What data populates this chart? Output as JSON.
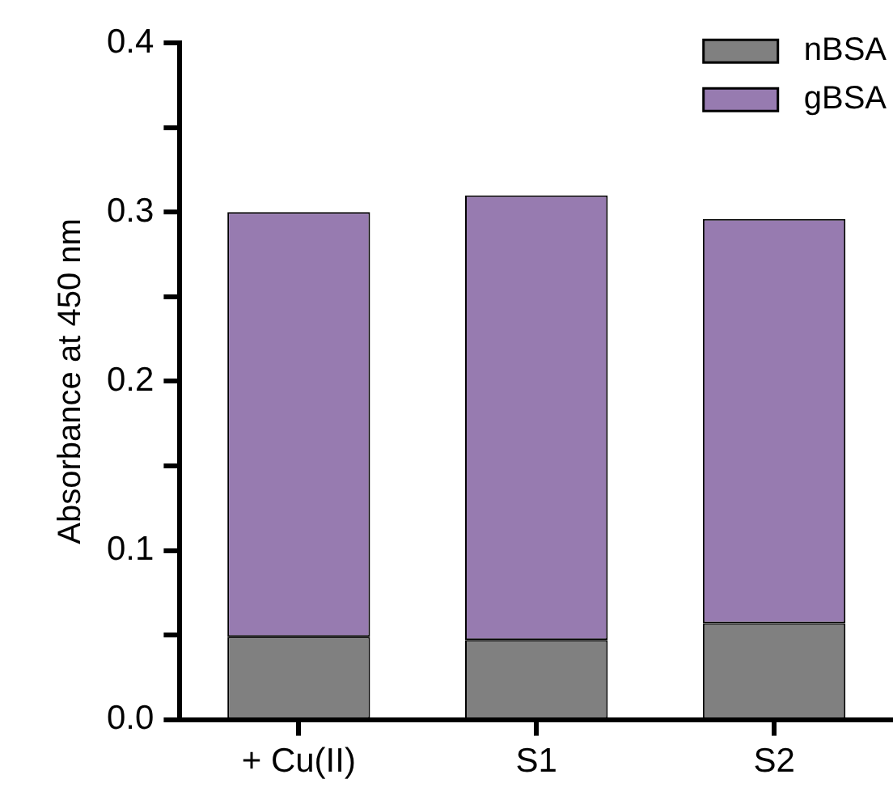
{
  "chart_data": {
    "type": "bar",
    "stacked": true,
    "ylabel": "Absorbance at 450 nm",
    "categories": [
      "+ Cu(II)",
      "S1",
      "S2"
    ],
    "series": [
      {
        "name": "nBSA",
        "color": "#808080",
        "values": [
          0.049,
          0.047,
          0.057
        ]
      },
      {
        "name": "gBSA",
        "color": "#977bb0",
        "values": [
          0.251,
          0.263,
          0.239
        ]
      }
    ],
    "ylim": [
      0,
      0.4
    ],
    "yticks": [
      {
        "value": 0,
        "label": "0.0"
      },
      {
        "value": 0.05,
        "label": null
      },
      {
        "value": 0.1,
        "label": "0.1"
      },
      {
        "value": 0.15,
        "label": null
      },
      {
        "value": 0.2,
        "label": "0.2"
      },
      {
        "value": 0.25,
        "label": null
      },
      {
        "value": 0.3,
        "label": "0.3"
      },
      {
        "value": 0.35,
        "label": null
      },
      {
        "value": 0.4,
        "label": "0.4"
      }
    ],
    "grid": false,
    "legend": "top right"
  }
}
